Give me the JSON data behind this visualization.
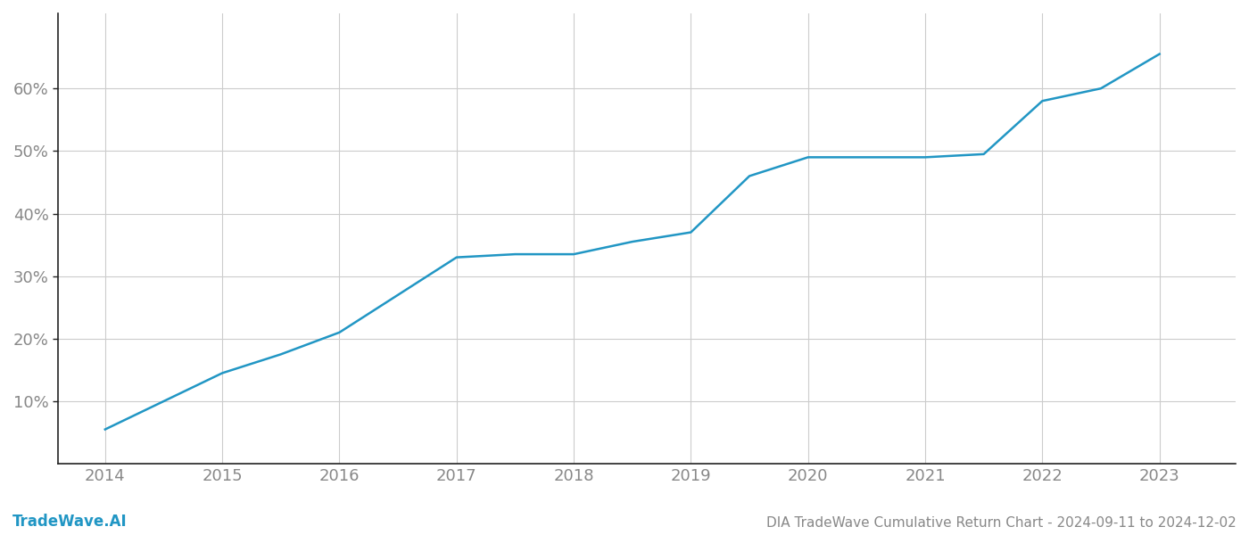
{
  "x_years": [
    2014.0,
    2014.5,
    2015.0,
    2015.5,
    2016.0,
    2016.5,
    2017.0,
    2017.5,
    2018.0,
    2018.5,
    2019.0,
    2019.5,
    2020.0,
    2020.5,
    2021.0,
    2021.5,
    2022.0,
    2022.5,
    2023.0
  ],
  "y_values": [
    5.5,
    10.0,
    14.5,
    17.5,
    21.0,
    27.0,
    33.0,
    33.5,
    33.5,
    35.5,
    37.0,
    46.0,
    49.0,
    49.0,
    49.0,
    49.5,
    58.0,
    60.0,
    65.5
  ],
  "line_color": "#2196c4",
  "line_width": 1.8,
  "background_color": "#ffffff",
  "grid_color": "#cccccc",
  "grid_linewidth": 0.8,
  "tick_color": "#888888",
  "tick_fontsize": 13,
  "ylabel_values": [
    10,
    20,
    30,
    40,
    50,
    60
  ],
  "xlabel_years": [
    2014,
    2015,
    2016,
    2017,
    2018,
    2019,
    2020,
    2021,
    2022,
    2023
  ],
  "title": "DIA TradeWave Cumulative Return Chart - 2024-09-11 to 2024-12-02",
  "watermark": "TradeWave.AI",
  "watermark_color": "#2196c4",
  "title_color": "#888888",
  "title_fontsize": 11,
  "watermark_fontsize": 12,
  "xmin": 2013.6,
  "xmax": 2023.65,
  "ymin": 0,
  "ymax": 72,
  "left_spine_color": "#222222",
  "bottom_spine_color": "#222222"
}
